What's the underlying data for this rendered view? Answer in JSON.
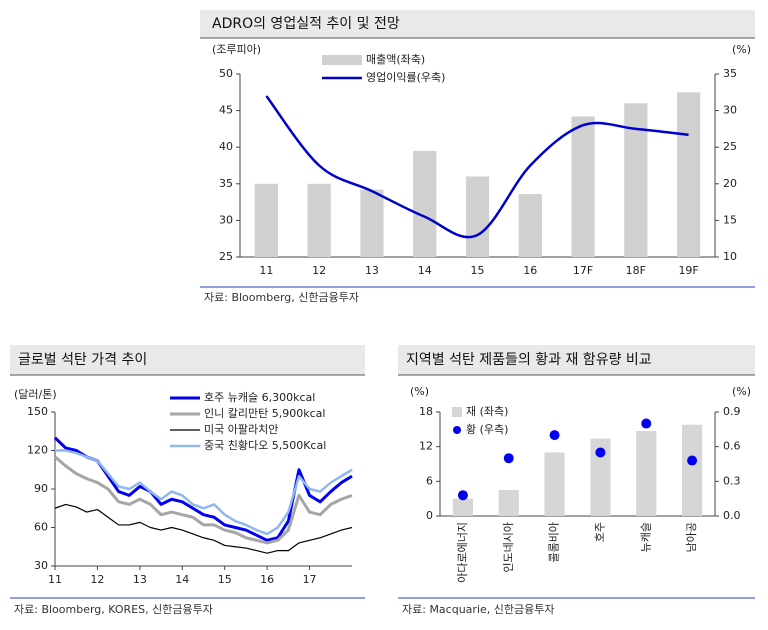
{
  "chart_data": [
    {
      "type": "combo",
      "title": "ADRO의 영업실적 추이 및 전망",
      "y_label": "(조루피아)",
      "y2_label": "(%)",
      "categories": [
        "11",
        "12",
        "13",
        "14",
        "15",
        "16",
        "17F",
        "18F",
        "19F"
      ],
      "series": [
        {
          "name": "매출액(좌축)",
          "kind": "bar",
          "color": "#d0d0d0",
          "values": [
            35,
            35,
            34.2,
            39.5,
            36,
            33.6,
            44.2,
            46,
            47.5
          ]
        },
        {
          "name": "영업이익률(우축)",
          "kind": "line",
          "axis": "y2",
          "color": "#0000cc",
          "values": [
            32,
            22.5,
            19,
            15.5,
            13,
            22.5,
            28,
            27.5,
            26.7
          ]
        }
      ],
      "ylim": [
        25,
        50
      ],
      "yticks": [
        25,
        30,
        35,
        40,
        45,
        50
      ],
      "y2lim": [
        10,
        35
      ],
      "y2ticks": [
        10,
        15,
        20,
        25,
        30,
        35
      ],
      "source": "자료: Bloomberg, 신한금융투자"
    },
    {
      "type": "line",
      "title": "글로벌 석탄 가격 추이",
      "y_label": "(달러/톤)",
      "x": [
        2011,
        2011.25,
        2011.5,
        2011.75,
        2012,
        2012.25,
        2012.5,
        2012.75,
        2013,
        2013.25,
        2013.5,
        2013.75,
        2014,
        2014.25,
        2014.5,
        2014.75,
        2015,
        2015.25,
        2015.5,
        2015.75,
        2016,
        2016.25,
        2016.5,
        2016.75,
        2017,
        2017.25,
        2017.5,
        2017.75,
        2018
      ],
      "series": [
        {
          "name": "호주 뉴캐슬 6,300kcal",
          "color": "#0000ee",
          "width": 3,
          "values": [
            130,
            122,
            120,
            115,
            112,
            100,
            88,
            85,
            92,
            88,
            78,
            82,
            80,
            75,
            70,
            68,
            62,
            60,
            58,
            54,
            50,
            52,
            65,
            105,
            85,
            80,
            88,
            95,
            100
          ]
        },
        {
          "name": "인니 칼리만탄 5,900kcal",
          "color": "#a6a6a6",
          "width": 3,
          "values": [
            115,
            108,
            102,
            98,
            95,
            90,
            80,
            78,
            82,
            78,
            70,
            72,
            70,
            68,
            62,
            62,
            58,
            56,
            52,
            50,
            48,
            50,
            58,
            85,
            72,
            70,
            78,
            82,
            85
          ]
        },
        {
          "name": "미국 아팔라치안",
          "color": "#000000",
          "width": 1.2,
          "values": [
            75,
            78,
            76,
            72,
            74,
            68,
            62,
            62,
            64,
            60,
            58,
            60,
            58,
            55,
            52,
            50,
            46,
            45,
            44,
            42,
            40,
            42,
            42,
            48,
            50,
            52,
            55,
            58,
            60
          ]
        },
        {
          "name": "중국 친황다오 5,500Kcal",
          "color": "#8fb8ee",
          "width": 2.5,
          "values": [
            120,
            120,
            118,
            115,
            112,
            102,
            92,
            90,
            95,
            88,
            82,
            88,
            85,
            78,
            75,
            78,
            70,
            65,
            62,
            58,
            55,
            60,
            72,
            100,
            90,
            88,
            95,
            100,
            105
          ]
        }
      ],
      "xlim": [
        2011,
        2018
      ],
      "xticks": [
        {
          "value": 2011,
          "label": "11"
        },
        {
          "value": 2012,
          "label": "12"
        },
        {
          "value": 2013,
          "label": "13"
        },
        {
          "value": 2014,
          "label": "14"
        },
        {
          "value": 2015,
          "label": "15"
        },
        {
          "value": 2016,
          "label": "16"
        },
        {
          "value": 2017,
          "label": "17"
        }
      ],
      "ylim": [
        30,
        150
      ],
      "yticks": [
        30,
        60,
        90,
        120,
        150
      ],
      "source": "자료: Bloomberg, KORES, 신한금융투자"
    },
    {
      "type": "combo",
      "title": "지역별 석탄 제품들의 황과 재 함유량 비교",
      "y_label": "(%)",
      "y2_label": "(%)",
      "categories": [
        "아다로에너지",
        "인도네시아",
        "콜롬비아",
        "호주",
        "뉴캐슬",
        "남아공"
      ],
      "series": [
        {
          "name": "재 (좌측)",
          "kind": "bar",
          "color": "#d6d6d6",
          "values": [
            3,
            4.5,
            11,
            13.4,
            14.7,
            15.8
          ]
        },
        {
          "name": "황 (우측)",
          "kind": "scatter",
          "axis": "y2",
          "color": "#0000ee",
          "values": [
            0.18,
            0.5,
            0.7,
            0.55,
            0.8,
            0.48
          ]
        }
      ],
      "ylim": [
        0,
        18
      ],
      "yticks": [
        0,
        6,
        12,
        18
      ],
      "y2lim": [
        0,
        0.9
      ],
      "y2ticks": [
        {
          "value": 0,
          "label": "0.0"
        },
        0.3,
        0.6,
        0.9
      ],
      "source": "자료: Macquarie, 신한금융투자"
    }
  ]
}
